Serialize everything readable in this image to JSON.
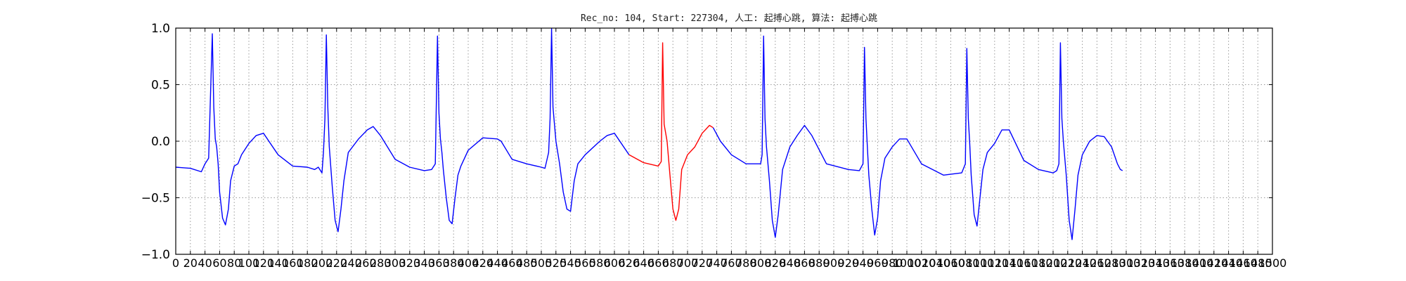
{
  "chart_data": {
    "type": "line",
    "title": "Rec_no: 104, Start: 227304, 人工: 起搏心跳, 算法: 起搏心跳",
    "xlabel": "",
    "ylabel": "",
    "xlim": [
      0,
      1500
    ],
    "ylim": [
      -1.0,
      1.0
    ],
    "grid": true,
    "y_ticks": [
      -1.0,
      -0.5,
      0.0,
      0.5,
      1.0
    ],
    "y_tick_labels": [
      "−1.0",
      "−0.5",
      "0.0",
      "0.5",
      "1.0"
    ],
    "x_ticks": [
      0,
      20,
      40,
      60,
      80,
      100,
      120,
      140,
      160,
      180,
      200,
      220,
      240,
      260,
      280,
      300,
      320,
      340,
      360,
      380,
      400,
      420,
      440,
      460,
      480,
      500,
      520,
      540,
      560,
      580,
      600,
      620,
      640,
      660,
      680,
      700,
      720,
      740,
      760,
      780,
      800,
      820,
      840,
      860,
      880,
      900,
      920,
      940,
      960,
      980,
      1000,
      1020,
      1040,
      1060,
      1080,
      1100,
      1120,
      1140,
      1160,
      1180,
      1200,
      1220,
      1240,
      1260,
      1280,
      1300,
      1320,
      1340,
      1360,
      1380,
      1400,
      1420,
      1440,
      1460,
      1480,
      1500
    ],
    "colors": {
      "signal": "#0000ff",
      "highlight": "#ff0000"
    },
    "series": [
      {
        "color": "#0000ff",
        "x": [
          0,
          20,
          35,
          40,
          45,
          50,
          52,
          54,
          56,
          58,
          60,
          64,
          68,
          72,
          75,
          80,
          85,
          90,
          100,
          110,
          120,
          140,
          160,
          180,
          190,
          195,
          200,
          202,
          204,
          206,
          208,
          210,
          214,
          218,
          222,
          226,
          230,
          236,
          250,
          262,
          270,
          280,
          300,
          320,
          340,
          350,
          355,
          358,
          360,
          362,
          364,
          366,
          370,
          374,
          378,
          382,
          386,
          390,
          400,
          420,
          440,
          445,
          460,
          480,
          500,
          505,
          510,
          512,
          514,
          516,
          520,
          525,
          530,
          535,
          540,
          545,
          550,
          560,
          580,
          590,
          600,
          620
        ],
        "y": [
          -0.23,
          -0.24,
          -0.27,
          -0.2,
          -0.15,
          0.95,
          0.3,
          0.02,
          -0.05,
          -0.2,
          -0.45,
          -0.68,
          -0.74,
          -0.6,
          -0.35,
          -0.22,
          -0.2,
          -0.12,
          -0.02,
          0.05,
          0.07,
          -0.12,
          -0.22,
          -0.23,
          -0.25,
          -0.23,
          -0.28,
          -0.1,
          0.2,
          0.94,
          0.3,
          -0.05,
          -0.4,
          -0.7,
          -0.8,
          -0.6,
          -0.35,
          -0.1,
          0.02,
          0.1,
          0.13,
          0.05,
          -0.16,
          -0.23,
          -0.26,
          -0.25,
          -0.2,
          0.93,
          0.25,
          0.02,
          -0.1,
          -0.25,
          -0.5,
          -0.7,
          -0.73,
          -0.5,
          -0.3,
          -0.22,
          -0.08,
          0.03,
          0.02,
          0.0,
          -0.16,
          -0.2,
          -0.23,
          -0.24,
          -0.1,
          0.2,
          1.0,
          0.3,
          0.0,
          -0.2,
          -0.45,
          -0.6,
          -0.62,
          -0.35,
          -0.2,
          -0.12,
          0.0,
          0.05,
          0.07,
          -0.12
        ]
      },
      {
        "color": "#ff0000",
        "x": [
          620,
          640,
          660,
          664,
          666,
          668,
          672,
          676,
          680,
          684,
          688,
          692,
          700,
          710,
          720,
          730,
          735
        ],
        "y": [
          -0.12,
          -0.19,
          -0.22,
          -0.18,
          0.87,
          0.15,
          0.0,
          -0.3,
          -0.6,
          -0.7,
          -0.6,
          -0.25,
          -0.12,
          -0.05,
          0.07,
          0.14,
          0.12
        ]
      },
      {
        "color": "#0000ff",
        "x": [
          735,
          745,
          760,
          780,
          795,
          800,
          802,
          804,
          806,
          808,
          812,
          816,
          820,
          824,
          830,
          840,
          850,
          860,
          870,
          890,
          920,
          935,
          940,
          942,
          944,
          946,
          948,
          952,
          956,
          960,
          964,
          970,
          980,
          990,
          1000,
          1020,
          1050,
          1075,
          1080,
          1082,
          1084,
          1086,
          1088,
          1092,
          1096,
          1100,
          1104,
          1110,
          1120,
          1130,
          1140,
          1160,
          1180,
          1200,
          1205,
          1208,
          1210,
          1212,
          1214,
          1218,
          1222,
          1226,
          1230,
          1234,
          1240,
          1250,
          1260,
          1270,
          1280,
          1288,
          1292,
          1295
        ],
        "y": [
          0.12,
          0.0,
          -0.12,
          -0.2,
          -0.2,
          -0.2,
          -0.12,
          0.93,
          0.2,
          -0.05,
          -0.35,
          -0.7,
          -0.85,
          -0.65,
          -0.25,
          -0.05,
          0.05,
          0.14,
          0.05,
          -0.2,
          -0.25,
          -0.26,
          -0.2,
          0.83,
          0.2,
          -0.05,
          -0.3,
          -0.6,
          -0.83,
          -0.68,
          -0.35,
          -0.15,
          -0.05,
          0.02,
          0.02,
          -0.2,
          -0.3,
          -0.28,
          -0.2,
          0.82,
          0.2,
          -0.02,
          -0.3,
          -0.65,
          -0.75,
          -0.5,
          -0.25,
          -0.1,
          -0.02,
          0.1,
          0.1,
          -0.17,
          -0.25,
          -0.28,
          -0.26,
          -0.2,
          0.87,
          0.2,
          0.0,
          -0.3,
          -0.7,
          -0.87,
          -0.6,
          -0.3,
          -0.12,
          0.0,
          0.05,
          0.04,
          -0.05,
          -0.2,
          -0.25,
          -0.26
        ]
      }
    ]
  }
}
